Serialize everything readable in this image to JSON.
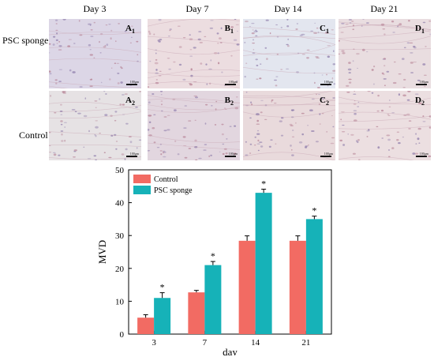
{
  "figure": {
    "column_headers": [
      "Day 3",
      "Day 7",
      "Day 14",
      "Day 21"
    ],
    "row_headers": [
      "PSC sponge",
      "Control"
    ],
    "panels": [
      [
        {
          "letter": "A",
          "sub": "1",
          "scale": "100μm"
        },
        {
          "letter": "B",
          "sub": "1",
          "scale": "100μm"
        },
        {
          "letter": "C",
          "sub": "1",
          "scale": "100μm"
        },
        {
          "letter": "D",
          "sub": "1",
          "scale": "100μm"
        }
      ],
      [
        {
          "letter": "A",
          "sub": "2",
          "scale": "100μm"
        },
        {
          "letter": "B",
          "sub": "2",
          "scale": "100μm"
        },
        {
          "letter": "C",
          "sub": "2",
          "scale": "100μm"
        },
        {
          "letter": "D",
          "sub": "2",
          "scale": "100μm"
        }
      ]
    ],
    "panel_tints": [
      [
        "#dcd6e6",
        "#ecdde0",
        "#e3e6ef",
        "#e9dde0"
      ],
      [
        "#e6e2e4",
        "#e2d6df",
        "#e9dadc",
        "#ecdfe1"
      ]
    ]
  },
  "chart_data": {
    "type": "bar",
    "categories": [
      "3",
      "7",
      "14",
      "21"
    ],
    "xlabel": "day",
    "ylabel": "MVD",
    "ylim": [
      0,
      50
    ],
    "yticks": [
      0,
      10,
      20,
      30,
      40,
      50
    ],
    "legend_position": "top-left",
    "significance_marker": "*",
    "series": [
      {
        "name": "Control",
        "color": "#f26b63",
        "values": [
          5.0,
          12.7,
          28.4,
          28.4
        ],
        "errors": [
          0.9,
          0.6,
          1.5,
          1.5
        ],
        "marked": [
          false,
          false,
          false,
          false
        ]
      },
      {
        "name": "PSC sponge",
        "color": "#16b2b8",
        "values": [
          11.0,
          21.0,
          43.0,
          35.0
        ],
        "errors": [
          1.6,
          1.1,
          1.1,
          0.9
        ],
        "marked": [
          true,
          true,
          true,
          true
        ]
      }
    ]
  }
}
